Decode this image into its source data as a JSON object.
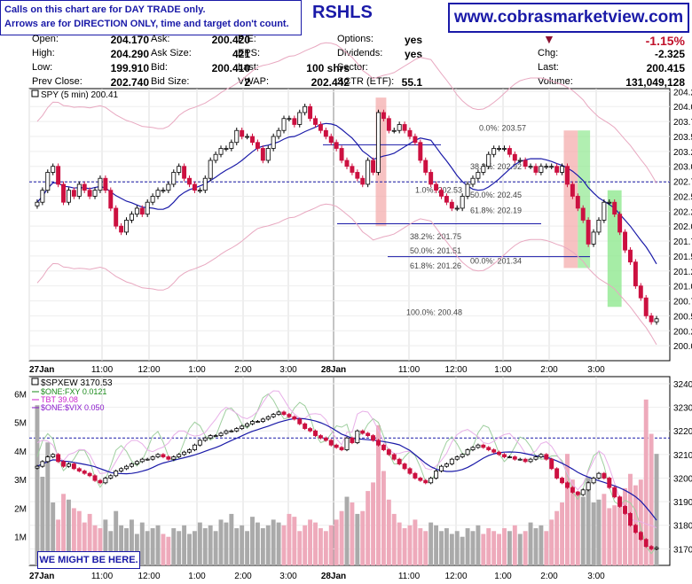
{
  "notes": {
    "line1": "Calls on this chart are for DAY TRADE only.",
    "line2": "Arrows are for DIRECTION ONLY, time and target don't count."
  },
  "ticker": "RSHLS",
  "site": "www.cobrasmarketview.com",
  "quote": {
    "col1": [
      {
        "label": "Open:",
        "value": "204.170"
      },
      {
        "label": "High:",
        "value": "204.290"
      },
      {
        "label": "Low:",
        "value": "199.910"
      },
      {
        "label": "Prev Close:",
        "value": "202.740"
      }
    ],
    "col2": [
      {
        "label": "Ask:",
        "value": "200.420"
      },
      {
        "label": "Ask Size:",
        "value": "421"
      },
      {
        "label": "Bid:",
        "value": "200.410"
      },
      {
        "label": "Bid Size:",
        "value": "2"
      }
    ],
    "col3": [
      {
        "label": "P/E:",
        "value": ""
      },
      {
        "label": "EPS:",
        "value": ""
      },
      {
        "label": "Last:",
        "value": "100 shrs"
      },
      {
        "label": "VWAP:",
        "value": "202.442"
      }
    ],
    "col4": [
      {
        "label": "Options:",
        "value": "yes"
      },
      {
        "label": "Dividends:",
        "value": "yes"
      },
      {
        "label": "Sector:",
        "value": ""
      },
      {
        "label": "SCTR (ETF):",
        "value": "55.1"
      }
    ],
    "col5": [
      {
        "label": "",
        "value": "-1.15%"
      },
      {
        "label": "Chg:",
        "value": "-2.325"
      },
      {
        "label": "Last:",
        "value": "200.415"
      },
      {
        "label": "Volume:",
        "value": "131,049,128"
      }
    ]
  },
  "colors": {
    "up": "#000000",
    "down": "#cc1040",
    "ma_blue": "#1a1aa8",
    "band_pink": "#e8a8c0",
    "zone_red": "#f4a8a8",
    "zone_green": "#90e890",
    "fib_line": "#1a1aa8",
    "vol_gray": "#aaaaaa",
    "vol_pink": "#eeaabb"
  },
  "chart_data": [
    {
      "type": "candlestick",
      "title": "SPY (5 min) 200.41",
      "ylim": [
        199.75,
        204.3
      ],
      "yticks": [
        "204.25",
        "204.00",
        "203.75",
        "203.50",
        "203.25",
        "203.00",
        "202.75",
        "202.50",
        "202.25",
        "202.00",
        "201.75",
        "201.50",
        "201.25",
        "201.00",
        "200.75",
        "200.50",
        "200.25",
        "200.00"
      ],
      "ytick_values": [
        204.25,
        204.0,
        203.75,
        203.5,
        203.25,
        203.0,
        202.75,
        202.5,
        202.25,
        202.0,
        201.75,
        201.5,
        201.25,
        201.0,
        200.75,
        200.5,
        200.25,
        200.0
      ],
      "xticks": [
        "27Jan",
        "11:00",
        "12:00",
        "1:00",
        "2:00",
        "3:00",
        "28Jan",
        "11:00",
        "12:00",
        "1:00",
        "2:00",
        "3:00"
      ],
      "fib_labels": [
        {
          "text": "0.0%: 203.57",
          "value": 203.57
        },
        {
          "text": "38.2%: 202.92",
          "value": 202.92
        },
        {
          "text": "1.0%: 202.53",
          "value": 202.53
        },
        {
          "text": "50.0%: 202.45",
          "value": 202.45
        },
        {
          "text": "61.8%: 202.19",
          "value": 202.19
        },
        {
          "text": "38.2%: 201.75",
          "value": 201.75
        },
        {
          "text": "50.0%: 201.51",
          "value": 201.51
        },
        {
          "text": "00.0%: 201.34",
          "value": 201.34
        },
        {
          "text": "61.8%: 201.26",
          "value": 201.26
        },
        {
          "text": "100.0%: 200.48",
          "value": 200.48
        }
      ],
      "prev_close": 202.74,
      "close_series": [
        202.4,
        202.6,
        202.9,
        203.0,
        202.7,
        202.4,
        202.6,
        202.5,
        202.7,
        202.6,
        202.5,
        202.6,
        202.8,
        202.6,
        202.3,
        202.0,
        201.9,
        202.1,
        202.2,
        202.3,
        202.2,
        202.4,
        202.5,
        202.6,
        202.6,
        202.7,
        202.9,
        203.0,
        202.8,
        202.7,
        202.6,
        202.6,
        202.8,
        203.1,
        203.2,
        203.3,
        203.3,
        203.4,
        203.6,
        203.5,
        203.5,
        203.4,
        203.3,
        203.1,
        203.3,
        203.5,
        203.6,
        203.8,
        203.8,
        203.7,
        203.9,
        204.0,
        203.8,
        203.7,
        203.6,
        203.5,
        203.4,
        203.3,
        203.1,
        203.0,
        202.9,
        202.8,
        202.7,
        203.1,
        202.9,
        203.9,
        203.8,
        203.6,
        203.6,
        203.7,
        203.6,
        203.5,
        203.4,
        203.1,
        202.9,
        202.7,
        202.6,
        202.5,
        202.4,
        202.3,
        202.3,
        202.5,
        202.7,
        202.8,
        202.9,
        203.0,
        203.2,
        203.3,
        203.3,
        203.3,
        203.2,
        203.1,
        203.1,
        203.0,
        203.0,
        202.9,
        203.0,
        203.0,
        203.0,
        202.9,
        203.0,
        202.7,
        202.5,
        202.3,
        202.1,
        201.7,
        201.9,
        202.1,
        202.4,
        202.4,
        202.2,
        201.9,
        201.6,
        201.4,
        201.0,
        200.8,
        200.5,
        200.4,
        200.45
      ]
    },
    {
      "type": "candlestick",
      "title": "$SPXEW 3170.53",
      "legend": [
        {
          "text": "$ONE:FXY 0.0121",
          "color": "#1a8a1a"
        },
        {
          "text": "TBT 39.08",
          "color": "#cc22cc"
        },
        {
          "text": "$ONE:$VIX 0.050",
          "color": "#8a1acc"
        }
      ],
      "ylim": [
        3163,
        3243
      ],
      "yticks": [
        "3240",
        "3230",
        "3220",
        "3210",
        "3200",
        "3190",
        "3180",
        "3170"
      ],
      "ytick_values": [
        3240,
        3230,
        3220,
        3210,
        3200,
        3190,
        3180,
        3170
      ],
      "vol_ticks": [
        "6M",
        "5M",
        "4M",
        "3M",
        "2M",
        "1M"
      ],
      "vol_tick_values": [
        6,
        5,
        4,
        3,
        2,
        1
      ],
      "xticks": [
        "27Jan",
        "11:00",
        "12:00",
        "1:00",
        "2:00",
        "3:00",
        "28Jan",
        "11:00",
        "12:00",
        "1:00",
        "2:00",
        "3:00"
      ],
      "prev_close": 3217,
      "volume_series_m": [
        5.6,
        3.1,
        4.3,
        2.2,
        1.6,
        2.5,
        2.3,
        2.0,
        1.9,
        1.5,
        1.8,
        1.4,
        1.3,
        1.6,
        1.2,
        1.9,
        1.4,
        1.3,
        1.6,
        1.1,
        1.5,
        1.2,
        1.3,
        1.4,
        1.1,
        1.0,
        1.3,
        1.2,
        1.4,
        1.1,
        1.2,
        1.5,
        1.3,
        1.4,
        1.2,
        1.6,
        1.5,
        1.8,
        1.3,
        1.4,
        1.2,
        1.7,
        1.5,
        1.3,
        1.4,
        1.6,
        1.5,
        1.4,
        1.8,
        1.7,
        1.2,
        1.4,
        1.6,
        1.5,
        1.3,
        1.2,
        1.4,
        1.6,
        1.9,
        2.4,
        2.2,
        1.8,
        1.9,
        2.6,
        2.9,
        4.9,
        3.3,
        2.3,
        1.8,
        1.5,
        1.3,
        1.4,
        1.6,
        1.3,
        1.2,
        1.5,
        1.4,
        1.2,
        1.3,
        1.1,
        1.2,
        1.0,
        1.3,
        1.2,
        1.4,
        1.1,
        1.3,
        1.2,
        1.1,
        1.3,
        1.2,
        1.4,
        1.1,
        1.2,
        1.5,
        1.3,
        1.4,
        1.2,
        1.6,
        1.9,
        2.2,
        3.9,
        3.0,
        2.6,
        2.4,
        3.1,
        2.2,
        2.3,
        2.5,
        2.0,
        2.1,
        2.4,
        2.7,
        3.2,
        2.8,
        3.0,
        5.8,
        4.6,
        3.9
      ],
      "close_series": [
        3205,
        3207,
        3209,
        3210,
        3207,
        3205,
        3206,
        3204,
        3203,
        3202,
        3201,
        3199,
        3198,
        3200,
        3201,
        3203,
        3204,
        3205,
        3206,
        3207,
        3208,
        3208,
        3209,
        3210,
        3209,
        3208,
        3209,
        3210,
        3211,
        3212,
        3214,
        3216,
        3217,
        3218,
        3218,
        3219,
        3220,
        3220,
        3221,
        3222,
        3223,
        3224,
        3224,
        3225,
        3226,
        3227,
        3228,
        3227,
        3226,
        3225,
        3223,
        3221,
        3220,
        3218,
        3217,
        3216,
        3214,
        3213,
        3212,
        3217,
        3215,
        3220,
        3219,
        3218,
        3216,
        3214,
        3212,
        3210,
        3208,
        3206,
        3204,
        3202,
        3200,
        3199,
        3198,
        3200,
        3203,
        3205,
        3206,
        3208,
        3209,
        3210,
        3212,
        3213,
        3214,
        3213,
        3212,
        3211,
        3210,
        3209,
        3209,
        3208,
        3208,
        3207,
        3208,
        3209,
        3210,
        3208,
        3204,
        3200,
        3198,
        3196,
        3194,
        3193,
        3195,
        3198,
        3200,
        3202,
        3200,
        3196,
        3192,
        3188,
        3185,
        3180,
        3177,
        3174,
        3171,
        3170,
        3170.5
      ]
    }
  ],
  "callout": "WE MIGHT BE HERE."
}
